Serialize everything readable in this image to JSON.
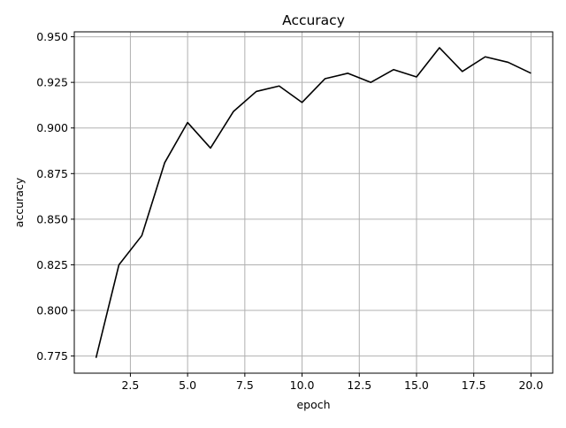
{
  "chart_data": {
    "type": "line",
    "title": "Accuracy",
    "xlabel": "epoch",
    "ylabel": "accuracy",
    "xlim": [
      0.05,
      20.95
    ],
    "ylim": [
      0.7656,
      0.9527
    ],
    "grid": true,
    "x_ticks": [
      2.5,
      5.0,
      7.5,
      10.0,
      12.5,
      15.0,
      17.5,
      20.0
    ],
    "x_tick_labels": [
      "2.5",
      "5.0",
      "7.5",
      "10.0",
      "12.5",
      "15.0",
      "17.5",
      "20.0"
    ],
    "y_ticks": [
      0.775,
      0.8,
      0.825,
      0.85,
      0.875,
      0.9,
      0.925,
      0.95
    ],
    "y_tick_labels": [
      "0.775",
      "0.800",
      "0.825",
      "0.850",
      "0.875",
      "0.900",
      "0.925",
      "0.950"
    ],
    "series": [
      {
        "color": "#000000",
        "x": [
          1,
          2,
          3,
          4,
          5,
          6,
          7,
          8,
          9,
          10,
          11,
          12,
          13,
          14,
          15,
          16,
          17,
          18,
          19,
          20
        ],
        "y": [
          0.774,
          0.825,
          0.841,
          0.881,
          0.903,
          0.889,
          0.909,
          0.92,
          0.923,
          0.914,
          0.927,
          0.93,
          0.925,
          0.932,
          0.928,
          0.944,
          0.931,
          0.939,
          0.936,
          0.93
        ]
      }
    ]
  }
}
